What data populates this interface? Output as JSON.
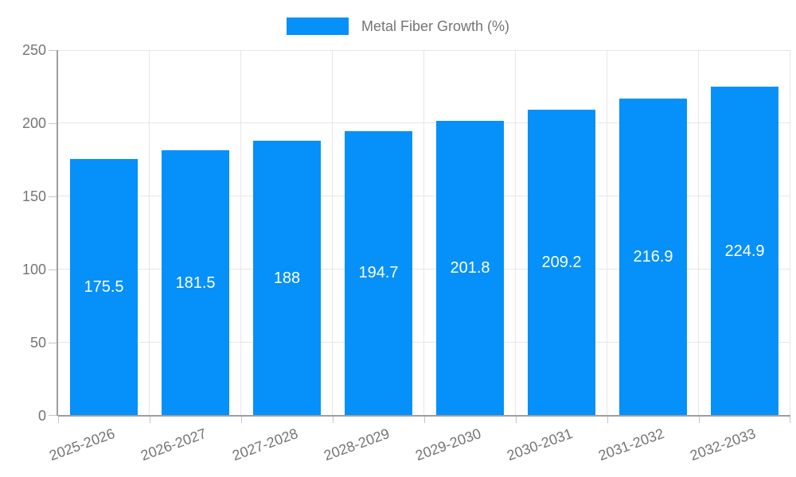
{
  "chart_data": {
    "type": "bar",
    "title": "",
    "xlabel": "",
    "ylabel": "",
    "legend": {
      "label": "Metal Fiber Growth (%)",
      "position": "top"
    },
    "categories": [
      "2025-2026",
      "2026-2027",
      "2027-2028",
      "2028-2029",
      "2029-2030",
      "2030-2031",
      "2031-2032",
      "2032-2033"
    ],
    "series": [
      {
        "name": "Metal Fiber Growth (%)",
        "values": [
          175.5,
          181.5,
          188,
          194.7,
          201.8,
          209.2,
          216.9,
          224.9
        ],
        "value_labels": [
          "175.5",
          "181.5",
          "188",
          "194.7",
          "201.8",
          "209.2",
          "216.9",
          "224.9"
        ]
      }
    ],
    "ylim": [
      0,
      250
    ],
    "yticks": [
      0,
      50,
      100,
      150,
      200,
      250
    ],
    "grid": true,
    "colors": {
      "bar": "#0690fa",
      "grid": "#e6e6e6",
      "axis": "#9e9e9e",
      "tick": "#c6c6c6",
      "axis_text": "#757575",
      "value_text": "#ffffff"
    }
  }
}
